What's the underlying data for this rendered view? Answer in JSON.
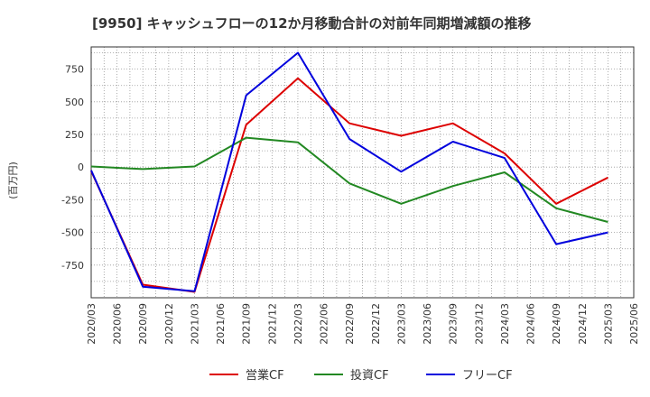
{
  "chart_data": {
    "type": "line",
    "title": "[9950]  キャッシュフローの12か月移動合計の対前年同期増減額の推移",
    "xlabel": "",
    "ylabel": "(百万円)",
    "ylim": [
      -1000,
      920
    ],
    "yticks": [
      -750,
      -500,
      -250,
      0,
      250,
      500,
      750
    ],
    "xticks": [
      "2020/03",
      "2020/06",
      "2020/09",
      "2020/12",
      "2021/03",
      "2021/06",
      "2021/09",
      "2021/12",
      "2022/03",
      "2022/06",
      "2022/09",
      "2022/12",
      "2023/03",
      "2023/06",
      "2023/09",
      "2023/12",
      "2024/03",
      "2024/06",
      "2024/09",
      "2024/12",
      "2025/03",
      "2025/06"
    ],
    "grid": true,
    "legend_position": "bottom",
    "series": [
      {
        "name": "営業CF",
        "color": "#dd0000",
        "points": [
          [
            "2020/03",
            -30
          ],
          [
            "2020/09",
            -900
          ],
          [
            "2021/03",
            -955
          ],
          [
            "2021/09",
            325
          ],
          [
            "2022/03",
            680
          ],
          [
            "2022/09",
            335
          ],
          [
            "2023/03",
            240
          ],
          [
            "2023/09",
            335
          ],
          [
            "2024/03",
            105
          ],
          [
            "2024/09",
            -280
          ],
          [
            "2025/03",
            -80
          ]
        ]
      },
      {
        "name": "投資CF",
        "color": "#228822",
        "points": [
          [
            "2020/03",
            5
          ],
          [
            "2020/09",
            -15
          ],
          [
            "2021/03",
            5
          ],
          [
            "2021/09",
            225
          ],
          [
            "2022/03",
            190
          ],
          [
            "2022/09",
            -125
          ],
          [
            "2023/03",
            -280
          ],
          [
            "2023/09",
            -145
          ],
          [
            "2024/03",
            -40
          ],
          [
            "2024/09",
            -315
          ],
          [
            "2025/03",
            -420
          ]
        ]
      },
      {
        "name": "フリーCF",
        "color": "#0000dd",
        "points": [
          [
            "2020/03",
            -25
          ],
          [
            "2020/09",
            -915
          ],
          [
            "2021/03",
            -950
          ],
          [
            "2021/09",
            550
          ],
          [
            "2022/03",
            875
          ],
          [
            "2022/09",
            215
          ],
          [
            "2023/03",
            -35
          ],
          [
            "2023/09",
            195
          ],
          [
            "2024/03",
            70
          ],
          [
            "2024/09",
            -590
          ],
          [
            "2025/03",
            -500
          ]
        ]
      }
    ]
  }
}
